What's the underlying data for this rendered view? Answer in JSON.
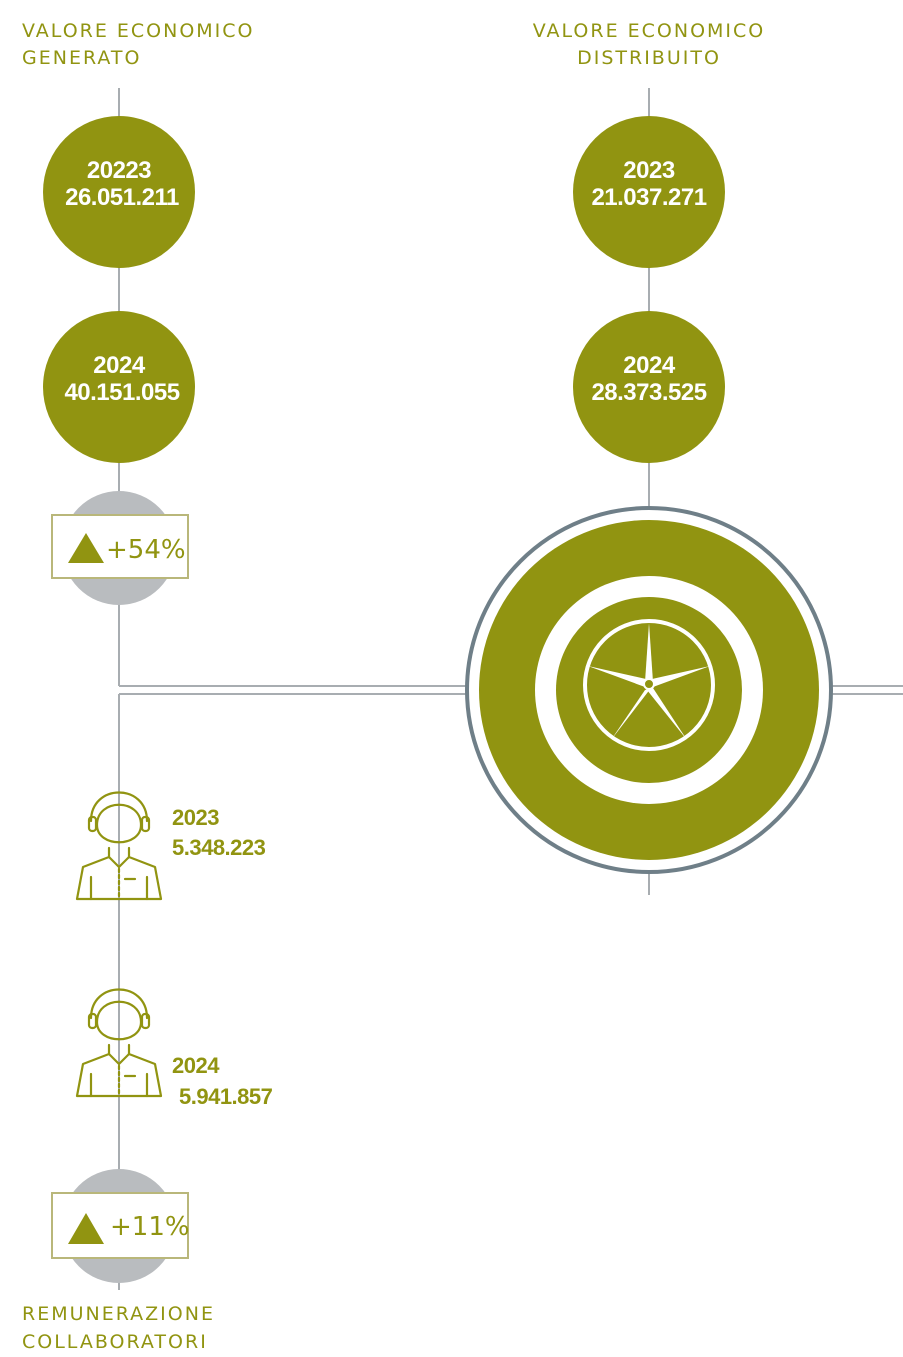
{
  "columns": [
    {
      "title": [
        "VALORE ECONOMICO",
        "GENERATO"
      ],
      "items": [
        {
          "year": "20223",
          "value": "26.051.211"
        },
        {
          "year": "2024",
          "value": "40.151.055"
        }
      ],
      "change": "+54%"
    },
    {
      "title": [
        "VALORE ECONOMICO",
        "DISTRIBUITO"
      ],
      "items": [
        {
          "year": "2023",
          "value": "21.037.271"
        },
        {
          "year": "2024",
          "value": "28.373.525"
        }
      ]
    }
  ],
  "collaborators": {
    "items": [
      {
        "year": "2023",
        "value": "5.348.223"
      },
      {
        "year": "2024",
        "value": "5.941.857"
      }
    ],
    "change": "+11%",
    "title": [
      "REMUNERAZIONE",
      "COLLABORATORI"
    ]
  }
}
